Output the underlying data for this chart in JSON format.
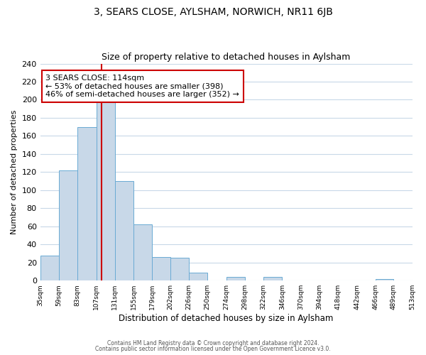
{
  "title": "3, SEARS CLOSE, AYLSHAM, NORWICH, NR11 6JB",
  "subtitle": "Size of property relative to detached houses in Aylsham",
  "xlabel": "Distribution of detached houses by size in Aylsham",
  "ylabel": "Number of detached properties",
  "bar_color": "#c8d8e8",
  "bar_edge_color": "#6aaad4",
  "grid_color": "#c8d8e8",
  "marker_line_color": "#cc0000",
  "marker_value": 114,
  "bin_edges": [
    35,
    59,
    83,
    107,
    131,
    155,
    179,
    202,
    226,
    250,
    274,
    298,
    322,
    346,
    370,
    394,
    418,
    442,
    466,
    489,
    513
  ],
  "counts": [
    28,
    122,
    170,
    198,
    110,
    62,
    26,
    25,
    9,
    0,
    4,
    0,
    4,
    0,
    0,
    0,
    0,
    0,
    2,
    0
  ],
  "tick_labels": [
    "35sqm",
    "59sqm",
    "83sqm",
    "107sqm",
    "131sqm",
    "155sqm",
    "179sqm",
    "202sqm",
    "226sqm",
    "250sqm",
    "274sqm",
    "298sqm",
    "322sqm",
    "346sqm",
    "370sqm",
    "394sqm",
    "418sqm",
    "442sqm",
    "466sqm",
    "489sqm",
    "513sqm"
  ],
  "annotation_title": "3 SEARS CLOSE: 114sqm",
  "annotation_line1": "← 53% of detached houses are smaller (398)",
  "annotation_line2": "46% of semi-detached houses are larger (352) →",
  "annotation_box_color": "#ffffff",
  "annotation_box_edge": "#cc0000",
  "footer1": "Contains HM Land Registry data © Crown copyright and database right 2024.",
  "footer2": "Contains public sector information licensed under the Open Government Licence v3.0.",
  "ylim": [
    0,
    240
  ],
  "yticks": [
    0,
    20,
    40,
    60,
    80,
    100,
    120,
    140,
    160,
    180,
    200,
    220,
    240
  ],
  "background_color": "#ffffff"
}
